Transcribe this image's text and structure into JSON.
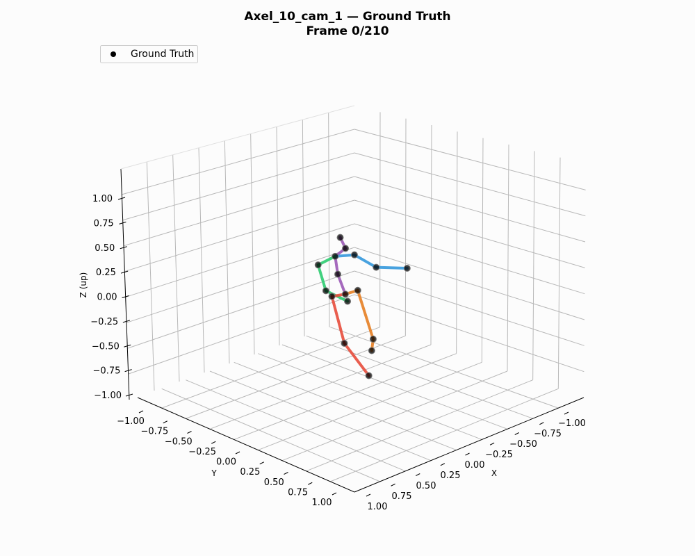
{
  "chart_data": {
    "type": "scatter",
    "projection": "3d",
    "title": "Axel_10_cam_1 — Ground Truth",
    "subtitle": "Frame 0/210",
    "xlabel": "X",
    "ylabel": "Y",
    "zlabel": "Z (up)",
    "x_ticks": [
      "−1.00",
      "−0.75",
      "−0.50",
      "−0.25",
      "0.00",
      "0.25",
      "0.50",
      "0.75",
      "1.00"
    ],
    "y_ticks": [
      "−1.00",
      "−0.75",
      "−0.50",
      "−0.25",
      "0.00",
      "0.25",
      "0.50",
      "0.75",
      "1.00"
    ],
    "z_ticks": [
      "1.00",
      "0.75",
      "0.50",
      "0.25",
      "0.00",
      "−0.25",
      "−0.50",
      "−0.75",
      "−1.00"
    ],
    "xlim": [
      -1.2,
      1.2
    ],
    "ylim": [
      -1.2,
      1.2
    ],
    "zlim": [
      -1.05,
      1.2
    ],
    "grid": true,
    "legend": {
      "position": "top-left",
      "entries": [
        "Ground Truth"
      ]
    },
    "series": [
      {
        "name": "Ground Truth",
        "joints": [
          {
            "id": "head",
            "x": 0.23,
            "y": 0,
            "z": 0.72
          },
          {
            "id": "neck",
            "x": 0.18,
            "y": 0,
            "z": 0.59
          },
          {
            "id": "thorax",
            "x": 0.29,
            "y": 0,
            "z": 0.55
          },
          {
            "id": "r_shoulder",
            "x": 0.09,
            "y": 0,
            "z": 0.49
          },
          {
            "id": "r_elbow",
            "x": -0.13,
            "y": 0,
            "z": 0.28
          },
          {
            "id": "r_wrist",
            "x": -0.45,
            "y": 0,
            "z": 0.15
          },
          {
            "id": "l_shoulder",
            "x": 0.47,
            "y": 0,
            "z": 0.53
          },
          {
            "id": "l_elbow",
            "x": 0.4,
            "y": 0,
            "z": 0.24
          },
          {
            "id": "l_wrist",
            "x": 0.18,
            "y": 0,
            "z": 0.05
          },
          {
            "id": "spine",
            "x": 0.27,
            "y": 0,
            "z": 0.36
          },
          {
            "id": "pelvis",
            "x": 0.2,
            "y": 0,
            "z": 0.13
          },
          {
            "id": "r_hip",
            "x": 0.07,
            "y": 0,
            "z": 0.12
          },
          {
            "id": "r_knee",
            "x": -0.07,
            "y": 0,
            "z": -0.43
          },
          {
            "id": "r_ankle",
            "x": -0.05,
            "y": 0,
            "z": -0.54
          },
          {
            "id": "l_hip",
            "x": 0.34,
            "y": 0,
            "z": 0.16
          },
          {
            "id": "l_knee",
            "x": 0.23,
            "y": 0,
            "z": -0.36
          },
          {
            "id": "l_ankle",
            "x": -0.01,
            "y": 0,
            "z": -0.78
          }
        ],
        "bones": [
          {
            "from": "head",
            "to": "neck",
            "color": "#9b59b6"
          },
          {
            "from": "neck",
            "to": "thorax",
            "color": "#9b59b6"
          },
          {
            "from": "thorax",
            "to": "spine",
            "color": "#9b59b6"
          },
          {
            "from": "spine",
            "to": "pelvis",
            "color": "#9b59b6"
          },
          {
            "from": "thorax",
            "to": "r_shoulder",
            "color": "#3498db"
          },
          {
            "from": "r_shoulder",
            "to": "r_elbow",
            "color": "#3498db"
          },
          {
            "from": "r_elbow",
            "to": "r_wrist",
            "color": "#3498db"
          },
          {
            "from": "thorax",
            "to": "l_shoulder",
            "color": "#2ecc71"
          },
          {
            "from": "l_shoulder",
            "to": "l_elbow",
            "color": "#2ecc71"
          },
          {
            "from": "l_elbow",
            "to": "l_wrist",
            "color": "#2ecc71"
          },
          {
            "from": "pelvis",
            "to": "r_hip",
            "color": "#e67e22"
          },
          {
            "from": "r_hip",
            "to": "r_knee",
            "color": "#e67e22"
          },
          {
            "from": "r_knee",
            "to": "r_ankle",
            "color": "#e67e22"
          },
          {
            "from": "pelvis",
            "to": "l_hip",
            "color": "#e74c3c"
          },
          {
            "from": "l_hip",
            "to": "l_knee",
            "color": "#e74c3c"
          },
          {
            "from": "l_knee",
            "to": "l_ankle",
            "color": "#e74c3c"
          }
        ],
        "marker_color": "#000000"
      }
    ]
  }
}
